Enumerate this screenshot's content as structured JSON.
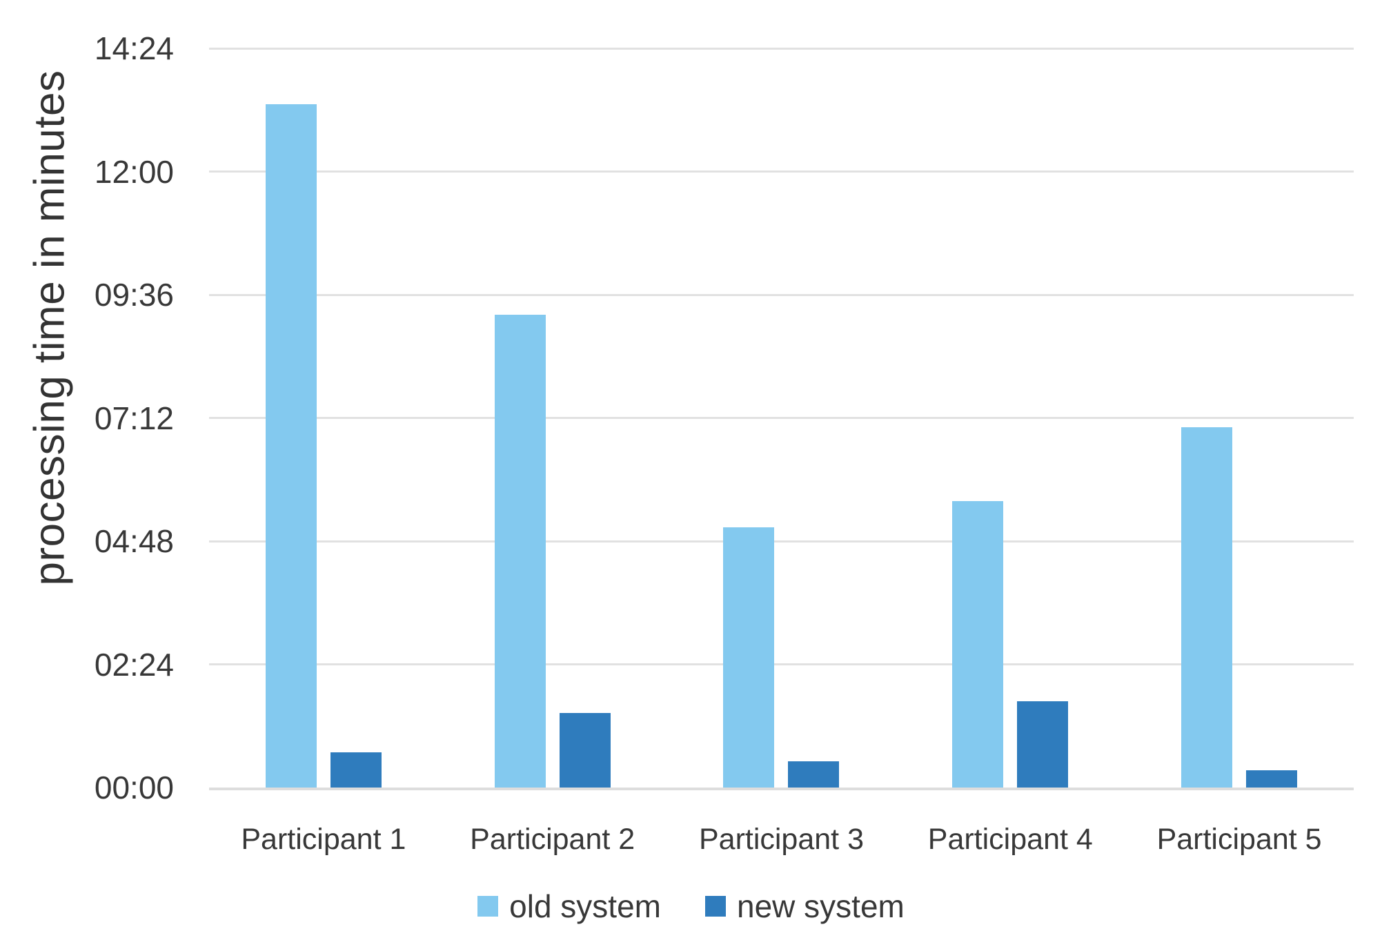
{
  "chart_data": {
    "type": "bar",
    "title": "",
    "xlabel": "",
    "ylabel": "processing time in minutes",
    "categories": [
      "Participant 1",
      "Participant 2",
      "Participant 3",
      "Participant 4",
      "Participant 5"
    ],
    "series": [
      {
        "name": "old system",
        "color": "#83C9EF",
        "values_seconds": [
          799,
          553,
          304,
          335,
          421
        ],
        "values_mmss": [
          "13:19",
          "09:13",
          "05:04",
          "05:35",
          "07:01"
        ]
      },
      {
        "name": "new system",
        "color": "#2F7CBD",
        "values_seconds": [
          41,
          87,
          31,
          101,
          20
        ],
        "values_mmss": [
          "00:41",
          "01:27",
          "00:31",
          "01:41",
          "00:20"
        ]
      }
    ],
    "y_axis": {
      "min_seconds": 0,
      "max_seconds": 864,
      "tick_interval_seconds": 144,
      "tick_labels": [
        "00:00",
        "02:24",
        "04:48",
        "07:12",
        "09:36",
        "12:00",
        "14:24"
      ]
    },
    "grid": "horizontal",
    "legend_position": "bottom",
    "colors": {
      "gridline": "#e1e1e1",
      "axis_line": "#dddddd",
      "text": "#383838"
    }
  }
}
